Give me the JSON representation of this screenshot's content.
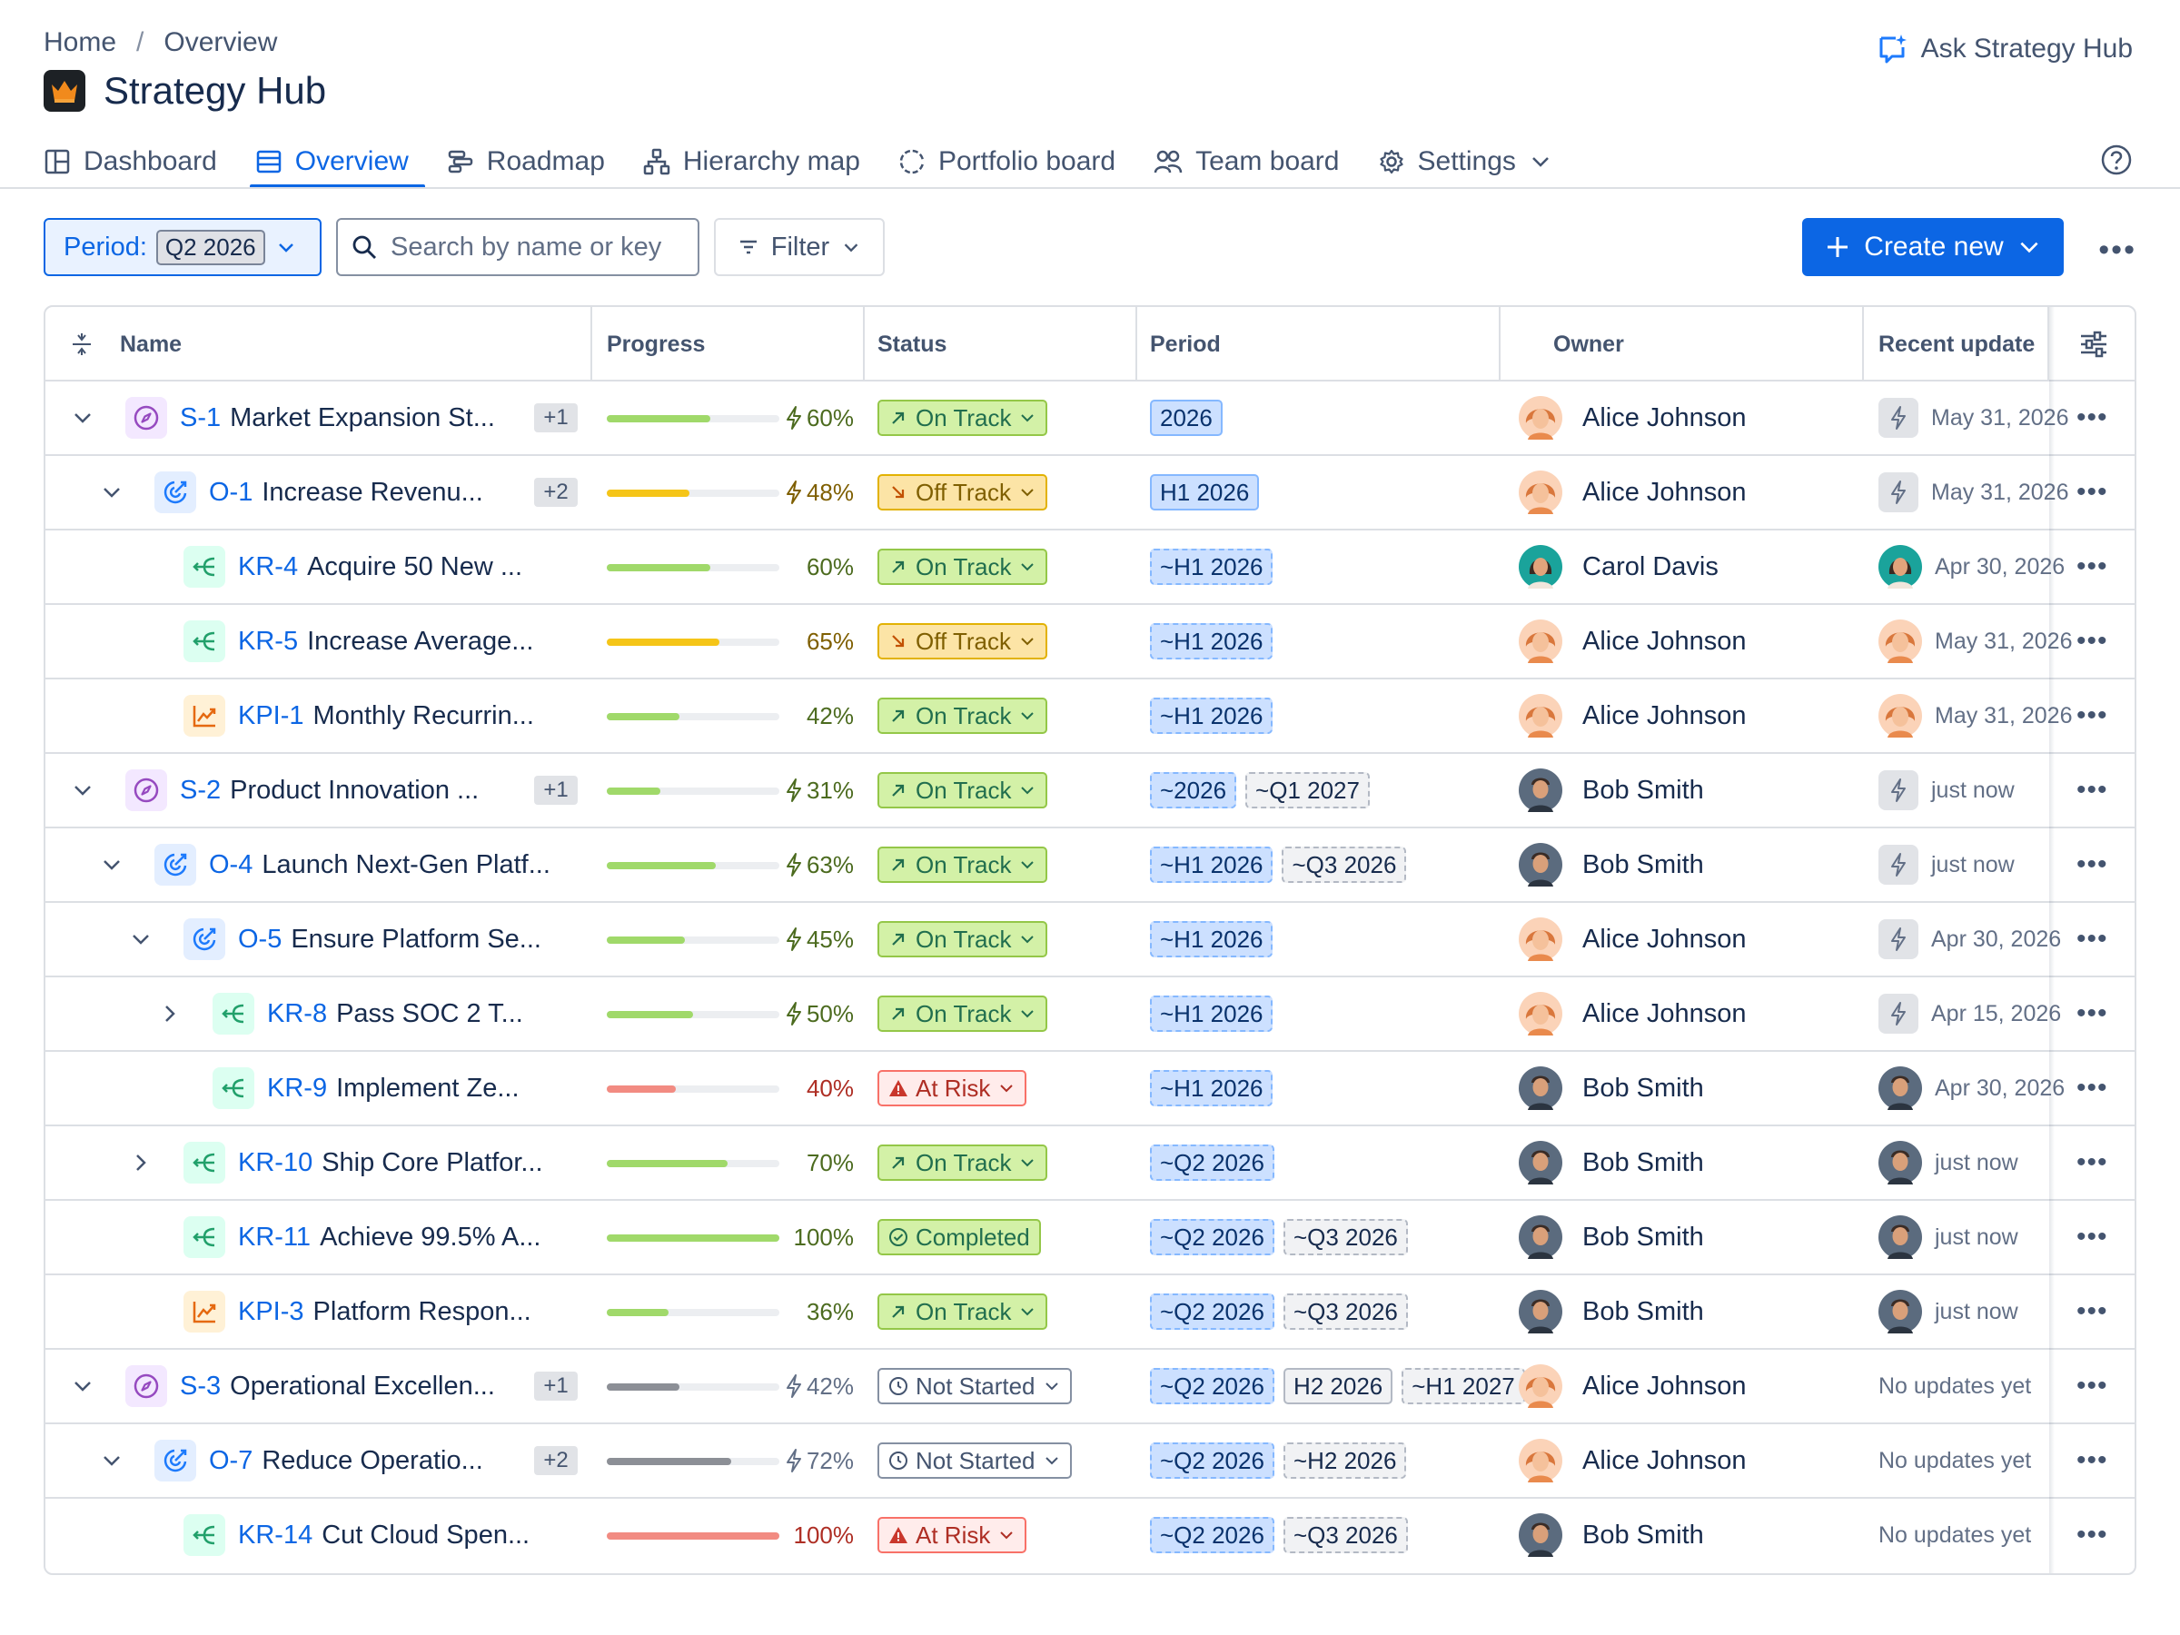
{
  "breadcrumb": {
    "home": "Home",
    "separator": "/",
    "current": "Overview"
  },
  "app": {
    "title": "Strategy Hub"
  },
  "ask": {
    "label": "Ask Strategy Hub"
  },
  "tabs": [
    {
      "label": "Dashboard",
      "icon": "dashboard-icon"
    },
    {
      "label": "Overview",
      "icon": "list-icon",
      "active": true
    },
    {
      "label": "Roadmap",
      "icon": "roadmap-icon"
    },
    {
      "label": "Hierarchy map",
      "icon": "hierarchy-icon"
    },
    {
      "label": "Portfolio board",
      "icon": "portfolio-icon"
    },
    {
      "label": "Team board",
      "icon": "team-icon"
    },
    {
      "label": "Settings",
      "icon": "gear-icon"
    }
  ],
  "toolbar": {
    "period_label": "Period:",
    "period_value": "Q2 2026",
    "search_placeholder": "Search by name or key",
    "filter_label": "Filter",
    "create_label": "Create new"
  },
  "columns": {
    "name": "Name",
    "progress": "Progress",
    "status": "Status",
    "period": "Period",
    "owner": "Owner",
    "recent_update": "Recent update"
  },
  "colors": {
    "accent": "#0c66e4",
    "green": "#a0d96a",
    "yellow": "#f5c518",
    "red": "#f28b82",
    "gray": "#8c8f96"
  },
  "rows": [
    {
      "level": 0,
      "chevron": "down",
      "type": "strategy",
      "key": "S-1",
      "name": "Market Expansion St...",
      "count": "+1",
      "progress": 60,
      "progress_text": "60%",
      "bolt": true,
      "bar": "green",
      "status": "On Track",
      "status_kind": "on",
      "periods": [
        {
          "text": "2026",
          "style": "blue"
        }
      ],
      "owner": "Alice Johnson",
      "avatar": "alice",
      "update_kind": "bolt",
      "update": "May 31, 2026"
    },
    {
      "level": 1,
      "chevron": "down",
      "type": "objective",
      "key": "O-1",
      "name": "Increase Revenu...",
      "count": "+2",
      "progress": 48,
      "progress_text": "48%",
      "bolt": true,
      "bar": "yellow",
      "status": "Off Track",
      "status_kind": "off",
      "periods": [
        {
          "text": "H1 2026",
          "style": "blue"
        }
      ],
      "owner": "Alice Johnson",
      "avatar": "alice",
      "update_kind": "bolt",
      "update": "May 31, 2026"
    },
    {
      "level": 2,
      "chevron": "none",
      "type": "kr",
      "key": "KR-4",
      "name": "Acquire 50 New ...",
      "count": "",
      "progress": 60,
      "progress_text": "60%",
      "bolt": false,
      "bar": "green",
      "status": "On Track",
      "status_kind": "on",
      "periods": [
        {
          "text": "~H1 2026",
          "style": "blue-dash"
        }
      ],
      "owner": "Carol Davis",
      "avatar": "carol",
      "update_kind": "avatar",
      "update": "Apr 30, 2026"
    },
    {
      "level": 2,
      "chevron": "none",
      "type": "kr",
      "key": "KR-5",
      "name": "Increase Average...",
      "count": "",
      "progress": 65,
      "progress_text": "65%",
      "bolt": false,
      "bar": "yellow",
      "status": "Off Track",
      "status_kind": "off",
      "periods": [
        {
          "text": "~H1 2026",
          "style": "blue-dash"
        }
      ],
      "owner": "Alice Johnson",
      "avatar": "alice",
      "update_kind": "avatar",
      "update": "May 31, 2026"
    },
    {
      "level": 2,
      "chevron": "none",
      "type": "kpi",
      "key": "KPI-1",
      "name": "Monthly Recurrin...",
      "count": "",
      "progress": 42,
      "progress_text": "42%",
      "bolt": false,
      "bar": "green",
      "status": "On Track",
      "status_kind": "on",
      "periods": [
        {
          "text": "~H1 2026",
          "style": "blue-dash"
        }
      ],
      "owner": "Alice Johnson",
      "avatar": "alice",
      "update_kind": "avatar",
      "update": "May 31, 2026"
    },
    {
      "level": 0,
      "chevron": "down",
      "type": "strategy",
      "key": "S-2",
      "name": "Product Innovation ...",
      "count": "+1",
      "progress": 31,
      "progress_text": "31%",
      "bolt": true,
      "bar": "green",
      "status": "On Track",
      "status_kind": "on",
      "periods": [
        {
          "text": "~2026",
          "style": "blue-dash"
        },
        {
          "text": "~Q1 2027",
          "style": "gray-dash"
        }
      ],
      "owner": "Bob Smith",
      "avatar": "bob",
      "update_kind": "bolt",
      "update": "just now"
    },
    {
      "level": 1,
      "chevron": "down",
      "type": "objective",
      "key": "O-4",
      "name": "Launch Next-Gen Platf...",
      "count": "",
      "progress": 63,
      "progress_text": "63%",
      "bolt": true,
      "bar": "green",
      "status": "On Track",
      "status_kind": "on",
      "periods": [
        {
          "text": "~H1 2026",
          "style": "blue-dash"
        },
        {
          "text": "~Q3 2026",
          "style": "gray-dash"
        }
      ],
      "owner": "Bob Smith",
      "avatar": "bob",
      "update_kind": "bolt",
      "update": "just now"
    },
    {
      "level": 2,
      "chevron": "down",
      "type": "objective",
      "key": "O-5",
      "name": "Ensure Platform Se...",
      "count": "",
      "progress": 45,
      "progress_text": "45%",
      "bolt": true,
      "bar": "green",
      "status": "On Track",
      "status_kind": "on",
      "periods": [
        {
          "text": "~H1 2026",
          "style": "blue-dash"
        }
      ],
      "owner": "Alice Johnson",
      "avatar": "alice",
      "update_kind": "bolt",
      "update": "Apr 30, 2026"
    },
    {
      "level": 3,
      "chevron": "right",
      "type": "kr",
      "key": "KR-8",
      "name": "Pass SOC 2 T...",
      "count": "",
      "progress": 50,
      "progress_text": "50%",
      "bolt": true,
      "bar": "green",
      "status": "On Track",
      "status_kind": "on",
      "periods": [
        {
          "text": "~H1 2026",
          "style": "blue-dash"
        }
      ],
      "owner": "Alice Johnson",
      "avatar": "alice",
      "update_kind": "bolt",
      "update": "Apr 15, 2026"
    },
    {
      "level": 3,
      "chevron": "none",
      "type": "kr",
      "key": "KR-9",
      "name": "Implement Ze...",
      "count": "",
      "progress": 40,
      "progress_text": "40%",
      "bolt": false,
      "bar": "red",
      "status": "At Risk",
      "status_kind": "risk",
      "periods": [
        {
          "text": "~H1 2026",
          "style": "blue-dash"
        }
      ],
      "owner": "Bob Smith",
      "avatar": "bob",
      "update_kind": "avatar",
      "update": "Apr 30, 2026"
    },
    {
      "level": 2,
      "chevron": "right",
      "type": "kr",
      "key": "KR-10",
      "name": "Ship Core Platfor...",
      "count": "",
      "progress": 70,
      "progress_text": "70%",
      "bolt": false,
      "bar": "green",
      "status": "On Track",
      "status_kind": "on",
      "periods": [
        {
          "text": "~Q2 2026",
          "style": "blue-dash"
        }
      ],
      "owner": "Bob Smith",
      "avatar": "bob",
      "update_kind": "avatar",
      "update": "just now"
    },
    {
      "level": 2,
      "chevron": "none",
      "type": "kr",
      "key": "KR-11",
      "name": "Achieve 99.5% A...",
      "count": "",
      "progress": 100,
      "progress_text": "100%",
      "bolt": false,
      "bar": "green",
      "status": "Completed",
      "status_kind": "done",
      "periods": [
        {
          "text": "~Q2 2026",
          "style": "blue-dash"
        },
        {
          "text": "~Q3 2026",
          "style": "gray-dash"
        }
      ],
      "owner": "Bob Smith",
      "avatar": "bob",
      "update_kind": "avatar",
      "update": "just now"
    },
    {
      "level": 2,
      "chevron": "none",
      "type": "kpi",
      "key": "KPI-3",
      "name": "Platform Respon...",
      "count": "",
      "progress": 36,
      "progress_text": "36%",
      "bolt": false,
      "bar": "green",
      "status": "On Track",
      "status_kind": "on",
      "periods": [
        {
          "text": "~Q2 2026",
          "style": "blue-dash"
        },
        {
          "text": "~Q3 2026",
          "style": "gray-dash"
        }
      ],
      "owner": "Bob Smith",
      "avatar": "bob",
      "update_kind": "avatar",
      "update": "just now"
    },
    {
      "level": 0,
      "chevron": "down",
      "type": "strategy",
      "key": "S-3",
      "name": "Operational Excellen...",
      "count": "+1",
      "progress": 42,
      "progress_text": "42%",
      "bolt": true,
      "bar": "gray",
      "status": "Not Started",
      "status_kind": "ns",
      "periods": [
        {
          "text": "~Q2 2026",
          "style": "blue-dash"
        },
        {
          "text": "H2 2026",
          "style": "gray"
        },
        {
          "text": "~H1 2027",
          "style": "gray-dash"
        }
      ],
      "owner": "Alice Johnson",
      "avatar": "alice",
      "update_kind": "none",
      "update": "No updates yet"
    },
    {
      "level": 1,
      "chevron": "down",
      "type": "objective",
      "key": "O-7",
      "name": "Reduce Operatio...",
      "count": "+2",
      "progress": 72,
      "progress_text": "72%",
      "bolt": true,
      "bar": "gray",
      "status": "Not Started",
      "status_kind": "ns",
      "periods": [
        {
          "text": "~Q2 2026",
          "style": "blue-dash"
        },
        {
          "text": "~H2 2026",
          "style": "gray-dash"
        }
      ],
      "owner": "Alice Johnson",
      "avatar": "alice",
      "update_kind": "none",
      "update": "No updates yet"
    },
    {
      "level": 2,
      "chevron": "none",
      "type": "kr",
      "key": "KR-14",
      "name": "Cut Cloud Spen...",
      "count": "",
      "progress": 100,
      "progress_text": "100%",
      "bolt": false,
      "bar": "red",
      "status": "At Risk",
      "status_kind": "risk",
      "periods": [
        {
          "text": "~Q2 2026",
          "style": "blue-dash"
        },
        {
          "text": "~Q3 2026",
          "style": "gray-dash"
        }
      ],
      "owner": "Bob Smith",
      "avatar": "bob",
      "update_kind": "none",
      "update": "No updates yet"
    }
  ]
}
